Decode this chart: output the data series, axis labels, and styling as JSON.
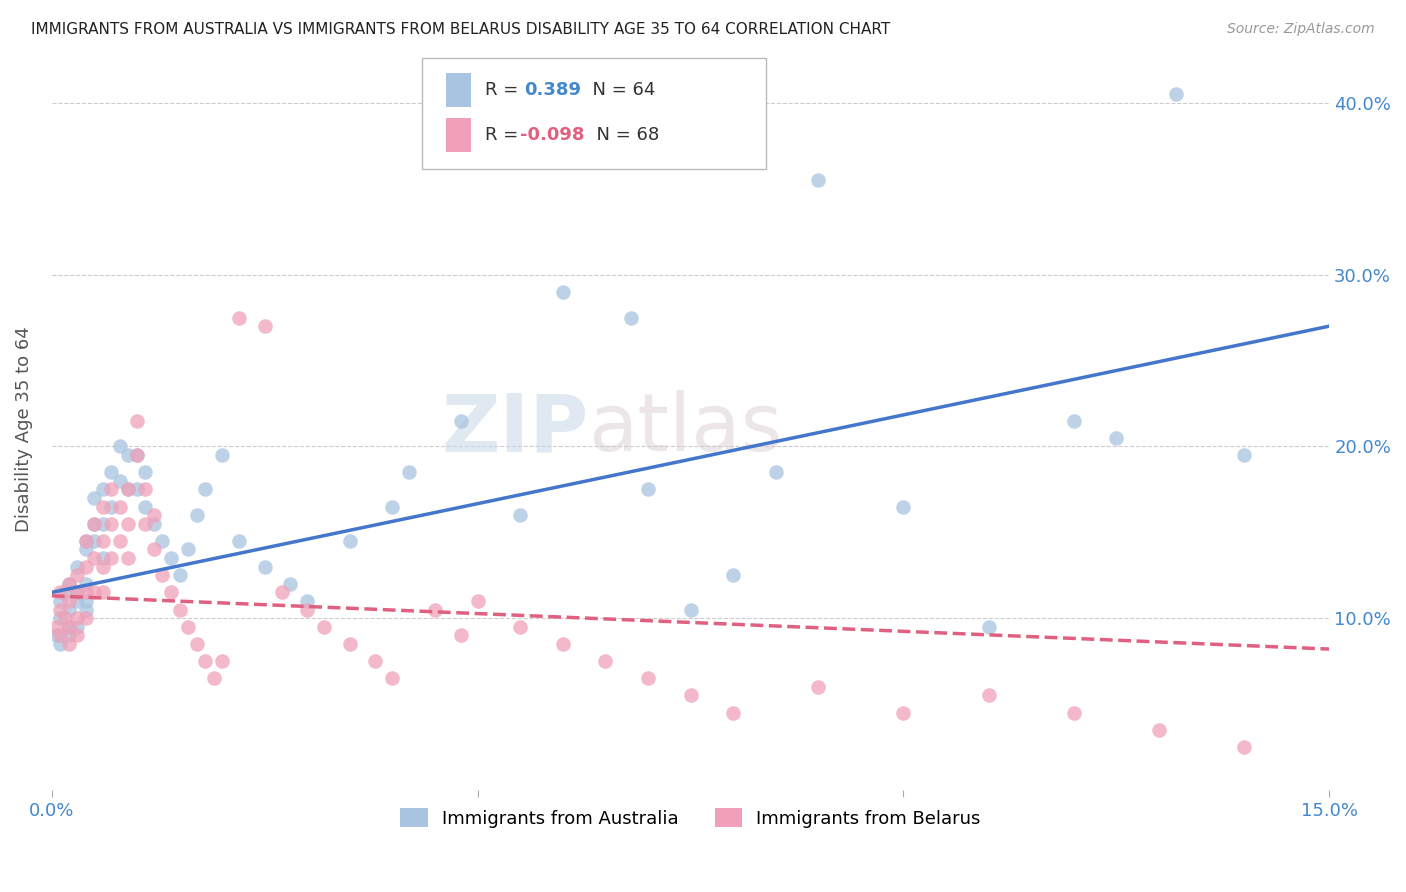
{
  "title": "IMMIGRANTS FROM AUSTRALIA VS IMMIGRANTS FROM BELARUS DISABILITY AGE 35 TO 64 CORRELATION CHART",
  "source": "Source: ZipAtlas.com",
  "ylabel_label": "Disability Age 35 to 64",
  "x_min": 0.0,
  "x_max": 0.15,
  "y_min": 0.0,
  "y_max": 0.42,
  "australia_color": "#a8c4e0",
  "belarus_color": "#f0a0b8",
  "australia_line_color": "#4477cc",
  "belarus_line_color": "#e06080",
  "watermark_part1": "ZIP",
  "watermark_part2": "atlas",
  "australia_x": [
    0.0005,
    0.001,
    0.001,
    0.001,
    0.0015,
    0.002,
    0.002,
    0.002,
    0.002,
    0.003,
    0.003,
    0.003,
    0.003,
    0.004,
    0.004,
    0.004,
    0.004,
    0.004,
    0.005,
    0.005,
    0.005,
    0.006,
    0.006,
    0.006,
    0.007,
    0.007,
    0.008,
    0.008,
    0.009,
    0.009,
    0.01,
    0.01,
    0.011,
    0.011,
    0.012,
    0.013,
    0.014,
    0.015,
    0.016,
    0.017,
    0.018,
    0.02,
    0.022,
    0.025,
    0.028,
    0.03,
    0.035,
    0.04,
    0.042,
    0.048,
    0.055,
    0.06,
    0.068,
    0.07,
    0.075,
    0.08,
    0.085,
    0.09,
    0.1,
    0.11,
    0.12,
    0.125,
    0.132,
    0.14
  ],
  "australia_y": [
    0.09,
    0.1,
    0.11,
    0.085,
    0.115,
    0.09,
    0.105,
    0.12,
    0.095,
    0.11,
    0.095,
    0.13,
    0.115,
    0.14,
    0.12,
    0.145,
    0.105,
    0.11,
    0.155,
    0.17,
    0.145,
    0.175,
    0.155,
    0.135,
    0.185,
    0.165,
    0.18,
    0.2,
    0.195,
    0.175,
    0.195,
    0.175,
    0.185,
    0.165,
    0.155,
    0.145,
    0.135,
    0.125,
    0.14,
    0.16,
    0.175,
    0.195,
    0.145,
    0.13,
    0.12,
    0.11,
    0.145,
    0.165,
    0.185,
    0.215,
    0.16,
    0.29,
    0.275,
    0.175,
    0.105,
    0.125,
    0.185,
    0.355,
    0.165,
    0.095,
    0.215,
    0.205,
    0.405,
    0.195
  ],
  "belarus_x": [
    0.0005,
    0.001,
    0.001,
    0.001,
    0.0015,
    0.002,
    0.002,
    0.002,
    0.002,
    0.003,
    0.003,
    0.003,
    0.003,
    0.004,
    0.004,
    0.004,
    0.004,
    0.005,
    0.005,
    0.005,
    0.006,
    0.006,
    0.006,
    0.006,
    0.007,
    0.007,
    0.007,
    0.008,
    0.008,
    0.009,
    0.009,
    0.009,
    0.01,
    0.01,
    0.011,
    0.011,
    0.012,
    0.012,
    0.013,
    0.014,
    0.015,
    0.016,
    0.017,
    0.018,
    0.019,
    0.02,
    0.022,
    0.025,
    0.027,
    0.03,
    0.032,
    0.035,
    0.038,
    0.04,
    0.045,
    0.048,
    0.05,
    0.055,
    0.06,
    0.065,
    0.07,
    0.075,
    0.08,
    0.09,
    0.1,
    0.11,
    0.12,
    0.13,
    0.14
  ],
  "belarus_y": [
    0.095,
    0.105,
    0.115,
    0.09,
    0.1,
    0.11,
    0.095,
    0.12,
    0.085,
    0.115,
    0.1,
    0.125,
    0.09,
    0.13,
    0.115,
    0.1,
    0.145,
    0.155,
    0.135,
    0.115,
    0.165,
    0.145,
    0.13,
    0.115,
    0.175,
    0.155,
    0.135,
    0.165,
    0.145,
    0.175,
    0.155,
    0.135,
    0.215,
    0.195,
    0.175,
    0.155,
    0.16,
    0.14,
    0.125,
    0.115,
    0.105,
    0.095,
    0.085,
    0.075,
    0.065,
    0.075,
    0.275,
    0.27,
    0.115,
    0.105,
    0.095,
    0.085,
    0.075,
    0.065,
    0.105,
    0.09,
    0.11,
    0.095,
    0.085,
    0.075,
    0.065,
    0.055,
    0.045,
    0.06,
    0.045,
    0.055,
    0.045,
    0.035,
    0.025
  ]
}
